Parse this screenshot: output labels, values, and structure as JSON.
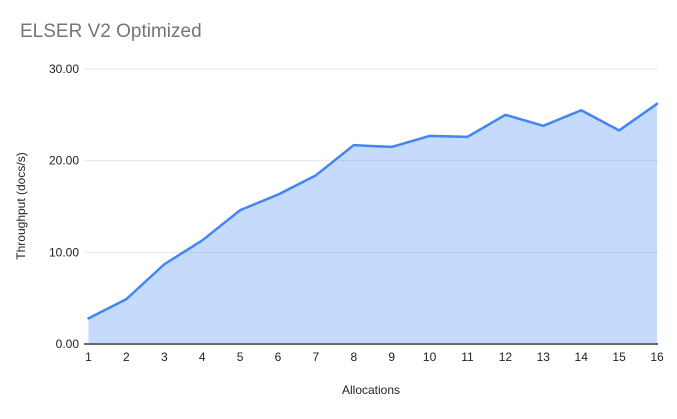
{
  "chart_data": {
    "type": "area",
    "title": "ELSER V2 Optimized",
    "xlabel": "Allocations",
    "ylabel": "Throughput (docs/s)",
    "x": [
      1,
      2,
      3,
      4,
      5,
      6,
      7,
      8,
      9,
      10,
      11,
      12,
      13,
      14,
      15,
      16
    ],
    "x_tick_labels": [
      "1",
      "2",
      "3",
      "4",
      "5",
      "6",
      "7",
      "8",
      "9",
      "10",
      "11",
      "12",
      "13",
      "14",
      "15",
      "16"
    ],
    "series": [
      {
        "name": "Throughput (docs/s)",
        "values": [
          2.8,
          4.9,
          8.7,
          11.3,
          14.6,
          16.3,
          18.4,
          21.7,
          21.5,
          22.7,
          22.6,
          25.0,
          23.8,
          25.5,
          23.3,
          26.2
        ]
      }
    ],
    "ylim": [
      0,
      30
    ],
    "y_ticks": [
      0,
      10,
      20,
      30
    ],
    "y_tick_labels": [
      "0.00",
      "10.00",
      "20.00",
      "30.00"
    ],
    "grid": "horizontal",
    "legend": "none",
    "colors": {
      "line": "#4285f4",
      "area_fill": "#4285f4",
      "area_opacity": 0.3,
      "gridline": "#e6e6e6",
      "axis_line": "#333333",
      "tick_label": "#222222",
      "axis_title": "#222222",
      "title": "#757575",
      "background": "#ffffff"
    }
  }
}
